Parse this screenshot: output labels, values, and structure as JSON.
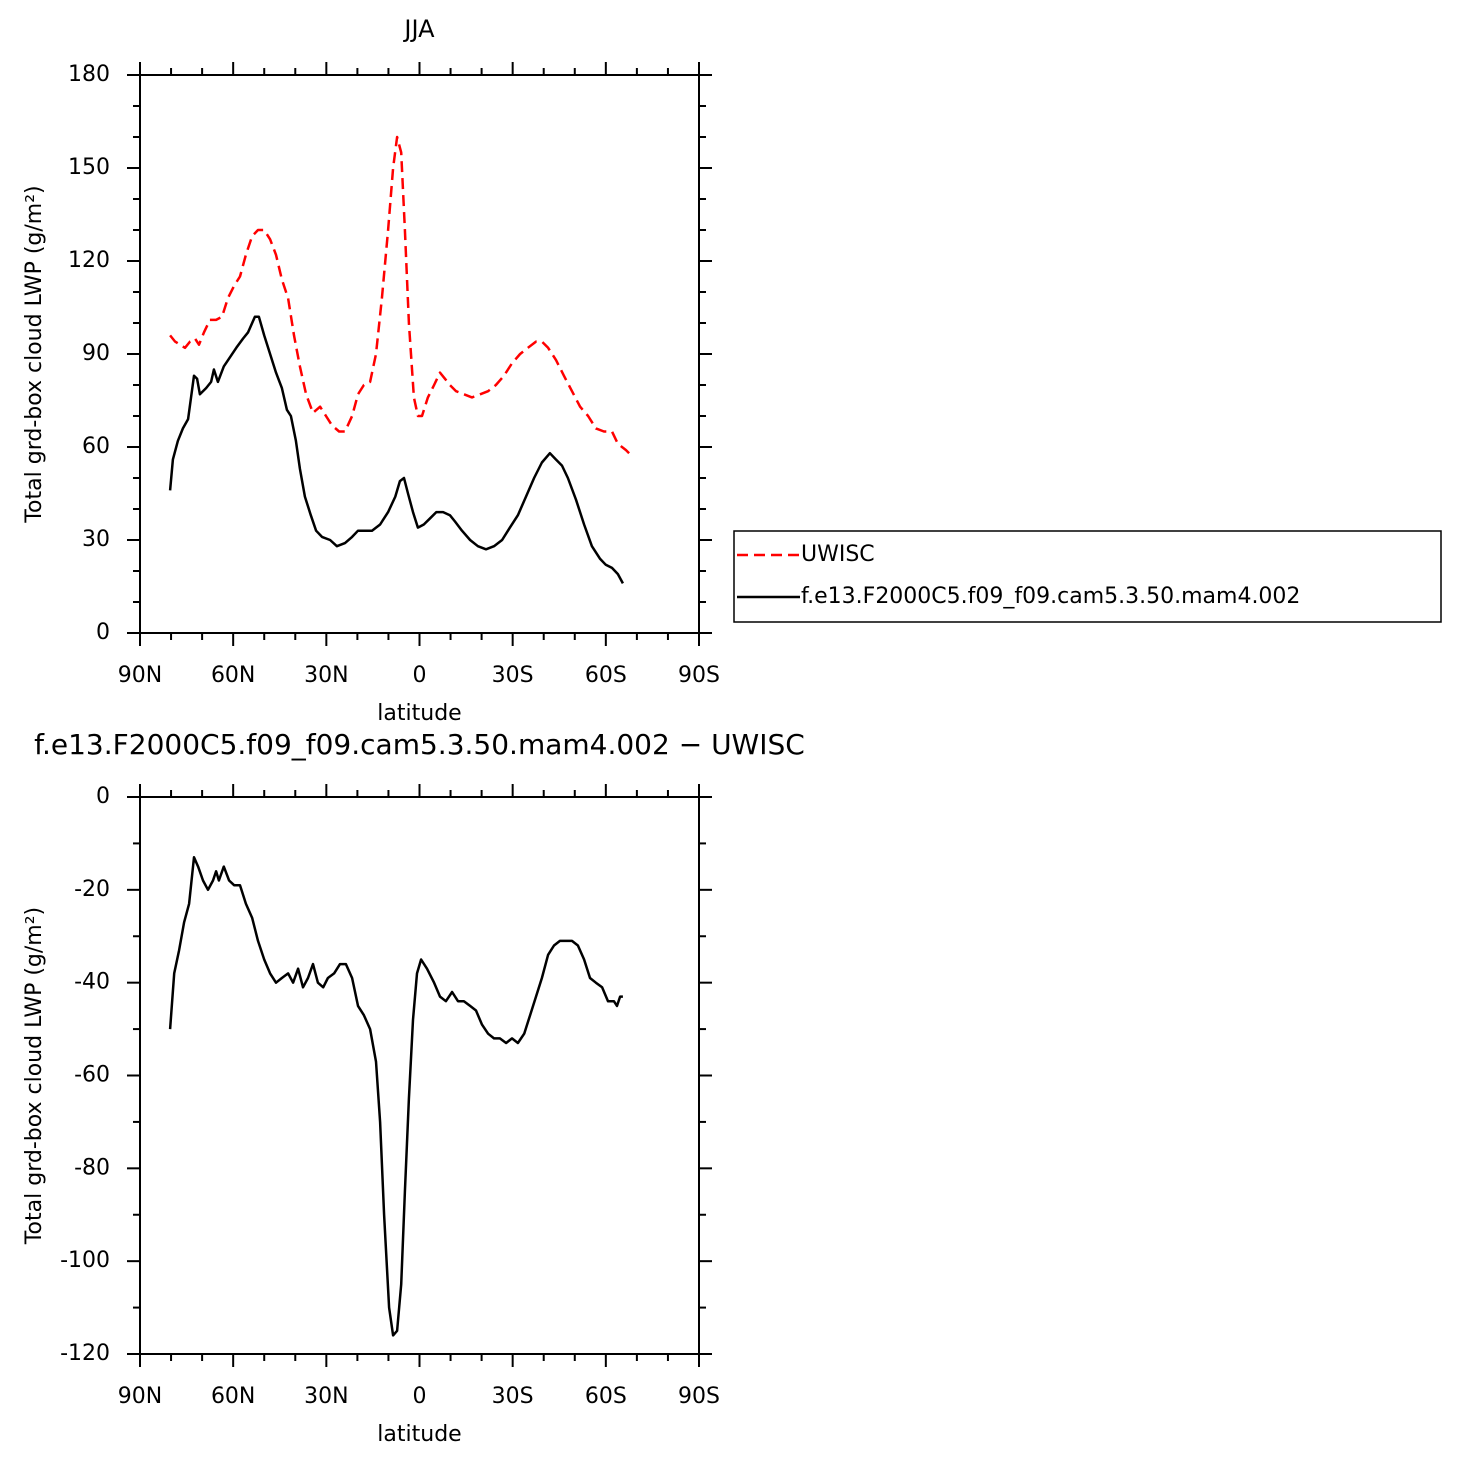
{
  "chart_data": [
    {
      "type": "line",
      "title": "JJA",
      "xlabel": "latitude",
      "ylabel": "Total grd-box cloud LWP (g/m²)",
      "xlim": [
        90,
        -90
      ],
      "xticks": [
        {
          "value": 90,
          "label": "90N"
        },
        {
          "value": 60,
          "label": "60N"
        },
        {
          "value": 30,
          "label": "30N"
        },
        0,
        {
          "value": -30,
          "label": "30S"
        },
        {
          "value": -60,
          "label": "60S"
        },
        {
          "value": -90,
          "label": "90S"
        }
      ],
      "minor_xticks": [
        80,
        70,
        50,
        40,
        20,
        10,
        -10,
        -20,
        -40,
        -50,
        -70,
        -80
      ],
      "ylim": [
        0,
        180
      ],
      "yticks": [
        0,
        30,
        60,
        90,
        120,
        150,
        180
      ],
      "minor_yticks": [
        10,
        20,
        40,
        50,
        70,
        80,
        100,
        110,
        130,
        140,
        160,
        170
      ],
      "legend": "right",
      "series": [
        {
          "name": "UWISC",
          "color": "#ff0000",
          "dashed": true,
          "x": [
            80.3,
            78.7,
            77.1,
            75.5,
            73.9,
            72.3,
            71,
            69.4,
            67.5,
            65.5,
            63.6,
            61.7,
            59.7,
            57.8,
            55.9,
            53.9,
            52,
            50,
            48.1,
            46.2,
            44.3,
            42.3,
            40.4,
            38.5,
            36.5,
            34.3,
            32,
            30.1,
            28.2,
            25.9,
            24,
            21.7,
            19.8,
            17.9,
            15.9,
            14,
            12.1,
            10.1,
            8.5,
            7.2,
            5.9,
            4.7,
            3.4,
            1.8,
            0.5,
            -0.8,
            -2.7,
            -4.7,
            -6.6,
            -8.2,
            -9.8,
            -11.8,
            -14.3,
            -16.9,
            -19.5,
            -22.1,
            -24.6,
            -27.2,
            -29.8,
            -32.4,
            -34.9,
            -37.5,
            -39.4,
            -41.4,
            -44,
            -46.5,
            -49.1,
            -51.7,
            -54.3,
            -56.8,
            -59.4,
            -62,
            -63.9,
            -65.2,
            -66.5,
            -67.5
          ],
          "values": [
            96,
            94,
            93,
            92,
            94,
            95,
            93,
            97,
            101,
            101,
            102,
            108,
            112,
            115,
            122,
            128,
            130,
            130,
            127,
            122,
            114,
            108,
            96,
            86,
            77,
            71,
            73,
            70,
            67,
            65,
            65,
            70,
            77,
            80,
            81,
            90,
            108,
            130,
            150,
            160,
            155,
            130,
            100,
            76,
            70,
            70,
            76,
            80,
            84,
            82,
            80,
            78,
            77,
            76,
            77,
            78,
            80,
            83,
            87,
            90,
            92,
            94,
            94,
            92,
            88,
            83,
            78,
            73,
            70,
            66,
            65,
            65,
            61,
            60,
            59,
            58
          ]
        },
        {
          "name": "f.e13.F2000C5.f09_f09.cam5.3.50.mam4.002",
          "color": "#000000",
          "dashed": false,
          "x": [
            80.3,
            79.4,
            77.8,
            76.2,
            74.5,
            72.6,
            71.6,
            70.7,
            68.7,
            67.1,
            66.2,
            64.9,
            63,
            61,
            59,
            56.8,
            55.2,
            53,
            51.7,
            50,
            48.1,
            46.2,
            44.3,
            42.7,
            41.4,
            39.8,
            38.5,
            36.9,
            35,
            33.3,
            31.4,
            28.8,
            26.6,
            24,
            21.7,
            19.8,
            17.5,
            15.3,
            12.7,
            10.1,
            7.8,
            6.3,
            5,
            3.7,
            2.1,
            0.5,
            -1.4,
            -3.4,
            -5.4,
            -7.6,
            -9.8,
            -11.4,
            -13.7,
            -16.3,
            -18.8,
            -21.4,
            -24,
            -26.6,
            -29.1,
            -31.7,
            -34.3,
            -36.9,
            -39.4,
            -42,
            -43.9,
            -45.9,
            -47.8,
            -50.4,
            -53,
            -55.5,
            -58.1,
            -60,
            -62,
            -63.9,
            -65.5
          ],
          "values": [
            46,
            56,
            62,
            66,
            69,
            83,
            82,
            77,
            79,
            81,
            85,
            81,
            86,
            89,
            92,
            95,
            97,
            102,
            102,
            96,
            90,
            84,
            79,
            72,
            70,
            62,
            53,
            44,
            38,
            33,
            31,
            30,
            28,
            29,
            31,
            33,
            33,
            33,
            35,
            39,
            44,
            49,
            50,
            45,
            39,
            34,
            35,
            37,
            39,
            39,
            38,
            36,
            33,
            30,
            28,
            27,
            28,
            30,
            34,
            38,
            44,
            50,
            55,
            58,
            56,
            54,
            50,
            43,
            35,
            28,
            24,
            22,
            21,
            19,
            16
          ]
        }
      ]
    },
    {
      "type": "line",
      "title": "f.e13.F2000C5.f09_f09.cam5.3.50.mam4.002 − UWISC",
      "xlabel": "latitude",
      "ylabel": "Total grd-box cloud LWP (g/m²)",
      "xlim": [
        90,
        -90
      ],
      "xticks": [
        {
          "value": 90,
          "label": "90N"
        },
        {
          "value": 60,
          "label": "60N"
        },
        {
          "value": 30,
          "label": "30N"
        },
        0,
        {
          "value": -30,
          "label": "30S"
        },
        {
          "value": -60,
          "label": "60S"
        },
        {
          "value": -90,
          "label": "90S"
        }
      ],
      "minor_xticks": [
        80,
        70,
        50,
        40,
        20,
        10,
        -10,
        -20,
        -40,
        -50,
        -70,
        -80
      ],
      "ylim": [
        -120,
        0
      ],
      "yticks": [
        -120,
        -100,
        -80,
        -60,
        -40,
        -20,
        0
      ],
      "minor_yticks": [
        -110,
        -90,
        -70,
        -50,
        -30,
        -10
      ],
      "series": [
        {
          "color": "#000000",
          "dashed": false,
          "x": [
            80.3,
            79,
            77.4,
            75.8,
            74.2,
            72.6,
            71.3,
            69.7,
            68.1,
            66.5,
            65.5,
            64.6,
            63,
            61.3,
            59.7,
            57.8,
            55.9,
            53.9,
            52,
            50,
            48.1,
            46.2,
            44.3,
            42.3,
            40.7,
            39.1,
            37.5,
            35.9,
            34.3,
            32.7,
            31,
            29.5,
            27.5,
            25.6,
            23.7,
            21.7,
            19.8,
            17.9,
            15.9,
            14,
            12.7,
            11.4,
            9.8,
            8.5,
            7.2,
            5.9,
            4.7,
            3.4,
            2.1,
            0.8,
            -0.5,
            -2.4,
            -4.7,
            -6.6,
            -8.5,
            -10.5,
            -12.4,
            -14.3,
            -16.3,
            -18.2,
            -20.1,
            -22.1,
            -24,
            -25.9,
            -27.9,
            -29.8,
            -31.7,
            -33.7,
            -35.6,
            -37.5,
            -39.4,
            -41.4,
            -43.3,
            -45.2,
            -47.2,
            -49.1,
            -51,
            -53,
            -54.9,
            -56.8,
            -58.8,
            -60.7,
            -62.6,
            -63.6,
            -64.6,
            -65.5
          ],
          "values": [
            -50,
            -38,
            -33,
            -27,
            -23,
            -13,
            -15,
            -18,
            -20,
            -18,
            -16,
            -18,
            -15,
            -18,
            -19,
            -19,
            -23,
            -26,
            -31,
            -35,
            -38,
            -40,
            -39,
            -38,
            -40,
            -37,
            -41,
            -39,
            -36,
            -40,
            -41,
            -39,
            -38,
            -36,
            -36,
            -39,
            -45,
            -47,
            -50,
            -57,
            -70,
            -90,
            -110,
            -116,
            -115,
            -105,
            -85,
            -65,
            -48,
            -38,
            -35,
            -37,
            -40,
            -43,
            -44,
            -42,
            -44,
            -44,
            -45,
            -46,
            -49,
            -51,
            -52,
            -52,
            -53,
            -52,
            -53,
            -51,
            -47,
            -43,
            -39,
            -34,
            -32,
            -31,
            -31,
            -31,
            -32,
            -35,
            -39,
            -40,
            -41,
            -44,
            -44,
            -45,
            -43,
            -43
          ]
        }
      ]
    }
  ]
}
